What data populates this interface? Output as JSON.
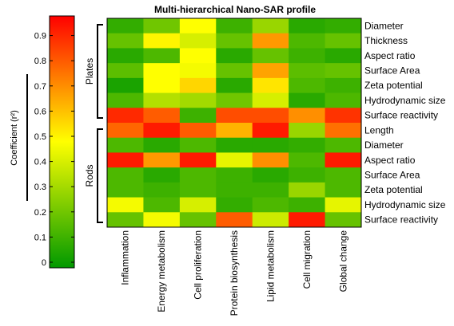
{
  "chart_data": {
    "type": "heatmap",
    "title": "Multi-hierarchical Nano-SAR profile",
    "colorbar": {
      "label": "Coefficient (r²)",
      "ticks": [
        "0",
        "0.1",
        "0.2",
        "0.3",
        "0.4",
        "0.5",
        "0.6",
        "0.7",
        "0.8",
        "0.9"
      ],
      "range": [
        0,
        1
      ],
      "colors": [
        "#009900",
        "#ffff00",
        "#ff0000"
      ]
    },
    "x_categories": [
      "Inflammation",
      "Energy metabolism",
      "Cell proliferation",
      "Protein biosynthesis",
      "Lipid metabolism",
      "Cell migration",
      "Global change"
    ],
    "groups": [
      {
        "name": "Plates",
        "rows": [
          "Diameter",
          "Thickness",
          "Aspect ratio",
          "Surface Area",
          "Zeta potential",
          "Hydrodynamic size",
          "Surface reactivity"
        ],
        "values": [
          [
            0.1,
            0.22,
            0.5,
            0.12,
            0.3,
            0.08,
            0.1
          ],
          [
            0.2,
            0.52,
            0.42,
            0.2,
            0.7,
            0.15,
            0.2
          ],
          [
            0.08,
            0.15,
            0.5,
            0.08,
            0.2,
            0.12,
            0.08
          ],
          [
            0.18,
            0.5,
            0.48,
            0.2,
            0.68,
            0.18,
            0.2
          ],
          [
            0.05,
            0.5,
            0.58,
            0.08,
            0.55,
            0.15,
            0.12
          ],
          [
            0.15,
            0.35,
            0.32,
            0.22,
            0.42,
            0.08,
            0.15
          ],
          [
            0.92,
            0.82,
            0.12,
            0.85,
            0.85,
            0.72,
            0.9
          ]
        ]
      },
      {
        "name": "Rods",
        "rows": [
          "Length",
          "Diameter",
          "Aspect ratio",
          "Surface Area",
          "Zeta potential",
          "Hydrodynamic size",
          "Surface reactivity"
        ],
        "values": [
          [
            0.8,
            0.95,
            0.82,
            0.65,
            0.95,
            0.3,
            0.78
          ],
          [
            0.15,
            0.08,
            0.15,
            0.08,
            0.08,
            0.1,
            0.15
          ],
          [
            0.95,
            0.7,
            0.95,
            0.45,
            0.72,
            0.15,
            0.95
          ],
          [
            0.15,
            0.08,
            0.15,
            0.12,
            0.08,
            0.12,
            0.15
          ],
          [
            0.15,
            0.12,
            0.15,
            0.12,
            0.12,
            0.3,
            0.15
          ],
          [
            0.48,
            0.15,
            0.42,
            0.1,
            0.15,
            0.12,
            0.45
          ],
          [
            0.2,
            0.48,
            0.2,
            0.82,
            0.4,
            0.95,
            0.2
          ]
        ]
      }
    ]
  }
}
